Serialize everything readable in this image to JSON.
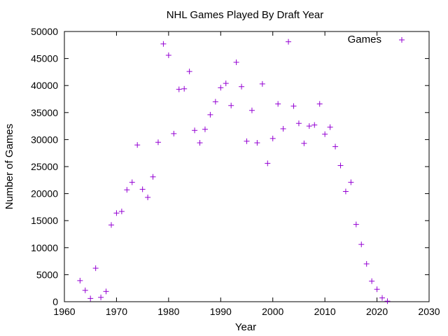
{
  "chart_data": {
    "type": "scatter",
    "title": "NHL Games Played By Draft Year",
    "xlabel": "Year",
    "ylabel": "Number of Games",
    "xlim": [
      1960,
      2030
    ],
    "ylim": [
      0,
      50000
    ],
    "xticks": [
      1960,
      1970,
      1980,
      1990,
      2000,
      2010,
      2020,
      2030
    ],
    "yticks": [
      0,
      5000,
      10000,
      15000,
      20000,
      25000,
      30000,
      35000,
      40000,
      45000,
      50000
    ],
    "grid": false,
    "legend": "top-right",
    "marker": "+",
    "series": [
      {
        "name": "Games",
        "color": "#9400d3",
        "points": [
          [
            1963,
            3900
          ],
          [
            1964,
            2100
          ],
          [
            1965,
            600
          ],
          [
            1966,
            6200
          ],
          [
            1967,
            800
          ],
          [
            1968,
            1900
          ],
          [
            1969,
            14200
          ],
          [
            1970,
            16400
          ],
          [
            1971,
            16700
          ],
          [
            1972,
            20700
          ],
          [
            1973,
            22100
          ],
          [
            1974,
            29000
          ],
          [
            1975,
            20800
          ],
          [
            1976,
            19300
          ],
          [
            1977,
            23100
          ],
          [
            1978,
            29500
          ],
          [
            1979,
            47700
          ],
          [
            1980,
            45600
          ],
          [
            1981,
            31100
          ],
          [
            1982,
            39300
          ],
          [
            1983,
            39400
          ],
          [
            1984,
            42600
          ],
          [
            1985,
            31700
          ],
          [
            1986,
            29400
          ],
          [
            1987,
            31900
          ],
          [
            1988,
            34600
          ],
          [
            1989,
            37000
          ],
          [
            1990,
            39600
          ],
          [
            1991,
            40400
          ],
          [
            1992,
            36300
          ],
          [
            1993,
            44300
          ],
          [
            1994,
            39800
          ],
          [
            1995,
            29700
          ],
          [
            1996,
            35400
          ],
          [
            1997,
            29400
          ],
          [
            1998,
            40300
          ],
          [
            1999,
            25600
          ],
          [
            2000,
            30200
          ],
          [
            2001,
            36600
          ],
          [
            2002,
            32000
          ],
          [
            2003,
            48100
          ],
          [
            2004,
            36200
          ],
          [
            2005,
            33000
          ],
          [
            2006,
            29300
          ],
          [
            2007,
            32500
          ],
          [
            2008,
            32700
          ],
          [
            2009,
            36600
          ],
          [
            2010,
            31000
          ],
          [
            2011,
            32300
          ],
          [
            2012,
            28700
          ],
          [
            2013,
            25200
          ],
          [
            2014,
            20400
          ],
          [
            2015,
            22100
          ],
          [
            2016,
            14300
          ],
          [
            2017,
            10600
          ],
          [
            2018,
            7000
          ],
          [
            2019,
            3800
          ],
          [
            2020,
            2300
          ],
          [
            2021,
            700
          ],
          [
            2022,
            100
          ]
        ]
      }
    ]
  }
}
